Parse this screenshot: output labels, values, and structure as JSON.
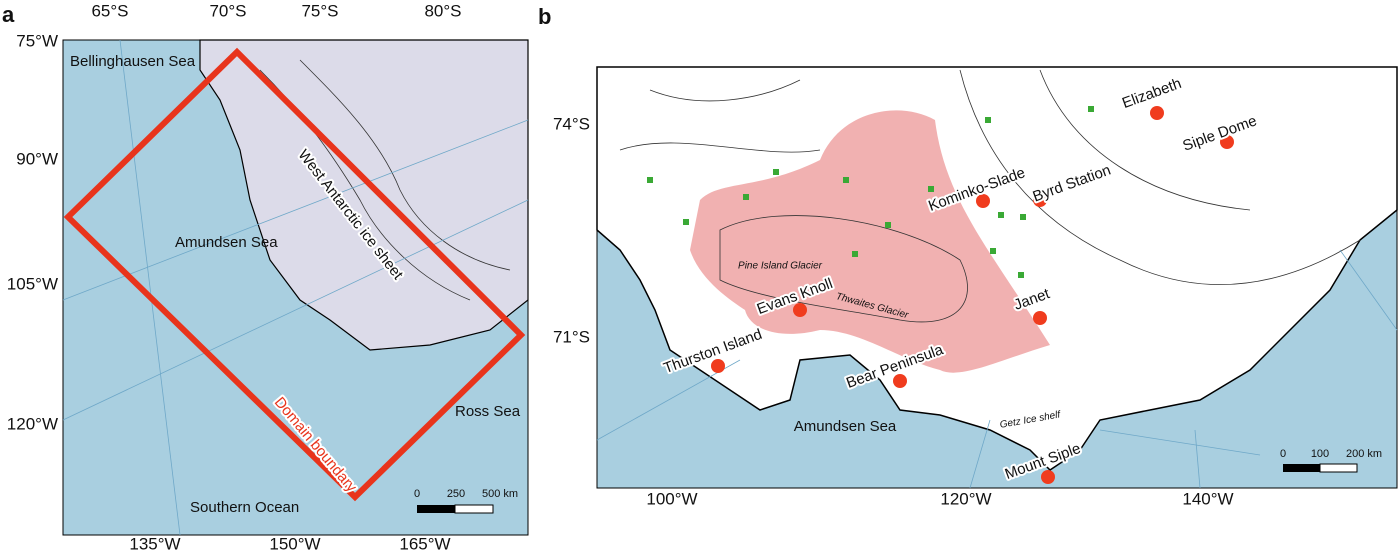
{
  "panel_a": {
    "label": "a",
    "top_ticks": [
      "65°S",
      "70°S",
      "75°S",
      "80°S"
    ],
    "left_ticks": [
      "75°W",
      "90°W",
      "105°W",
      "120°W"
    ],
    "bottom_ticks": [
      "135°W",
      "150°W",
      "165°W"
    ],
    "places": [
      "Bellinghausen Sea",
      "West Antarctic ice sheet",
      "Amundsen Sea",
      "Domain boundary",
      "Ross Sea",
      "Southern Ocean"
    ],
    "scale": [
      "0",
      "250",
      "500 km"
    ]
  },
  "panel_b": {
    "label": "b",
    "left_ticks": [
      "74°S",
      "71°S"
    ],
    "bottom_ticks": [
      "100°W",
      "120°W",
      "140°W"
    ],
    "stations": [
      "Elizabeth",
      "Siple Dome",
      "Kominko-Slade",
      "Byrd Station",
      "Evans Knoll",
      "Janet",
      "Thurston Island",
      "Bear Peninsula",
      "Mount Siple"
    ],
    "features": [
      "Pine Island Glacier",
      "Thwaites Glacier",
      "Getz Ice shelf",
      "Amundsen Sea"
    ],
    "scale": [
      "0",
      "100",
      "200 km"
    ]
  }
}
